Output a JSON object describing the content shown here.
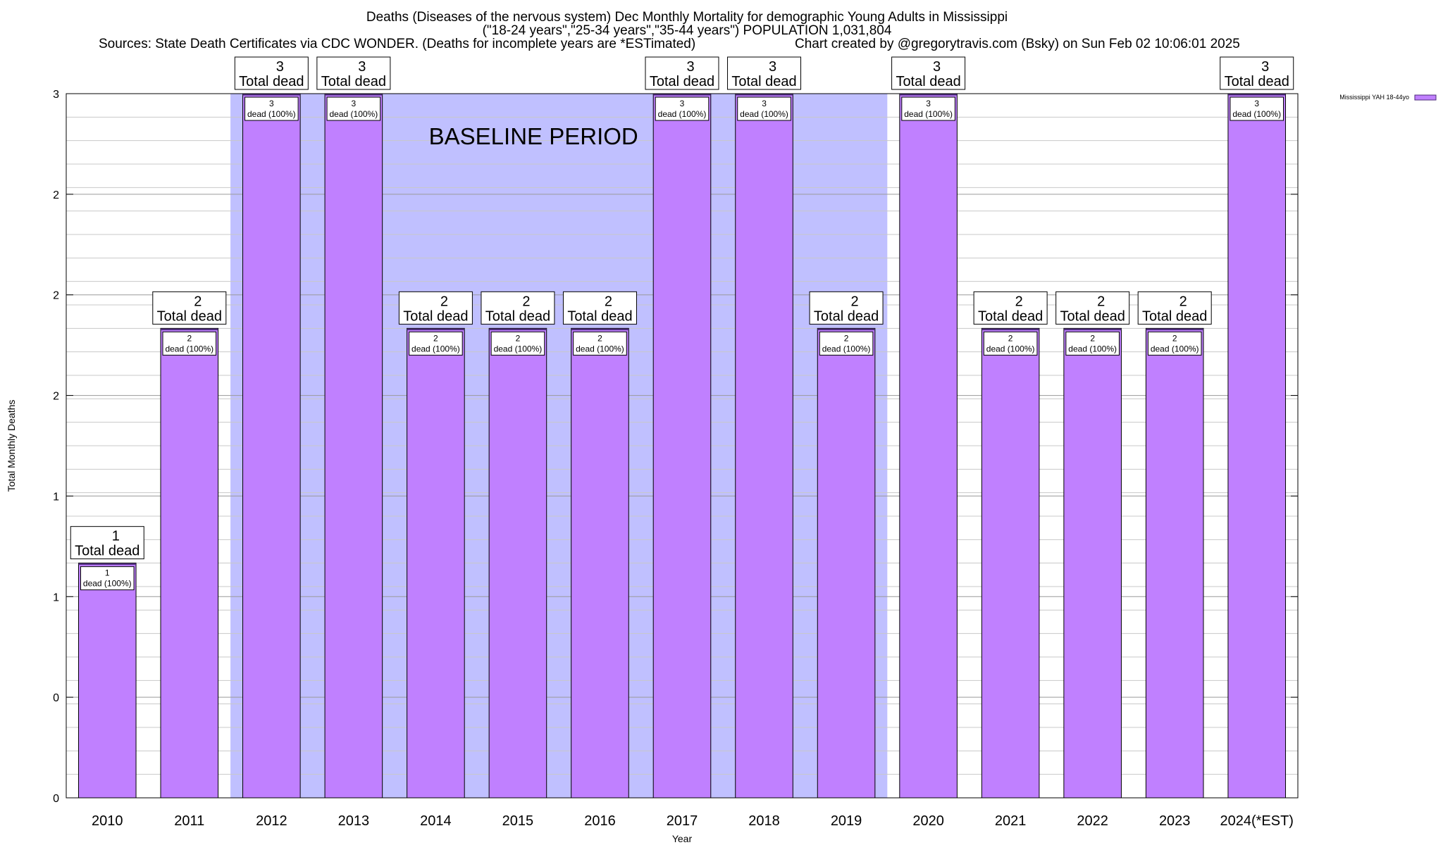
{
  "chart_data": {
    "type": "bar",
    "title": "Deaths (Diseases of the nervous system) Dec Monthly Mortality for demographic Young Adults in Mississippi",
    "subtitle": "(\"18-24 years\",\"25-34 years\",\"35-44 years\") POPULATION 1,031,804",
    "sources": "Sources: State Death Certificates via CDC WONDER. (Deaths for incomplete years are *ESTimated)",
    "credit": "Chart created by @gregorytravis.com (Bsky) on Sun Feb 02 10:06:01 2025",
    "xlabel": "Year",
    "ylabel": "Total Monthly Deaths",
    "categories": [
      "2010",
      "2011",
      "2012",
      "2013",
      "2014",
      "2015",
      "2016",
      "2017",
      "2018",
      "2019",
      "2020",
      "2021",
      "2022",
      "2023",
      "2024(*EST)"
    ],
    "series": [
      {
        "name": "Mississippi YAH 18-44yo",
        "values": [
          1,
          2,
          3,
          3,
          2,
          2,
          2,
          3,
          3,
          2,
          3,
          2,
          2,
          2,
          3
        ],
        "color": "#c080ff"
      }
    ],
    "ylim": [
      0,
      3
    ],
    "y_tick_labels": [
      "0",
      "0",
      "1",
      "1",
      "2",
      "2",
      "2",
      "3"
    ],
    "bar_top_labels": [
      "1\nTotal dead",
      "2\nTotal dead",
      "3\nTotal dead",
      "3\nTotal dead",
      "2\nTotal dead",
      "2\nTotal dead",
      "2\nTotal dead",
      "3\nTotal dead",
      "3\nTotal dead",
      "2\nTotal dead",
      "3\nTotal dead",
      "2\nTotal dead",
      "2\nTotal dead",
      "2\nTotal dead",
      "3\nTotal dead"
    ],
    "bar_inner_labels": [
      "1\ndead (100%)",
      "2\ndead (100%)",
      "3\ndead (100%)",
      "3\ndead (100%)",
      "2\ndead (100%)",
      "2\ndead (100%)",
      "2\ndead (100%)",
      "3\ndead (100%)",
      "3\ndead (100%)",
      "2\ndead (100%)",
      "3\ndead (100%)",
      "2\ndead (100%)",
      "2\ndead (100%)",
      "2\ndead (100%)",
      "3\ndead (100%)"
    ],
    "baseline_period": {
      "label": "BASELINE PERIOD",
      "from": "2012",
      "to": "2019",
      "color": "#c0c0ff"
    },
    "grid": true,
    "legend_position": "top-right"
  }
}
